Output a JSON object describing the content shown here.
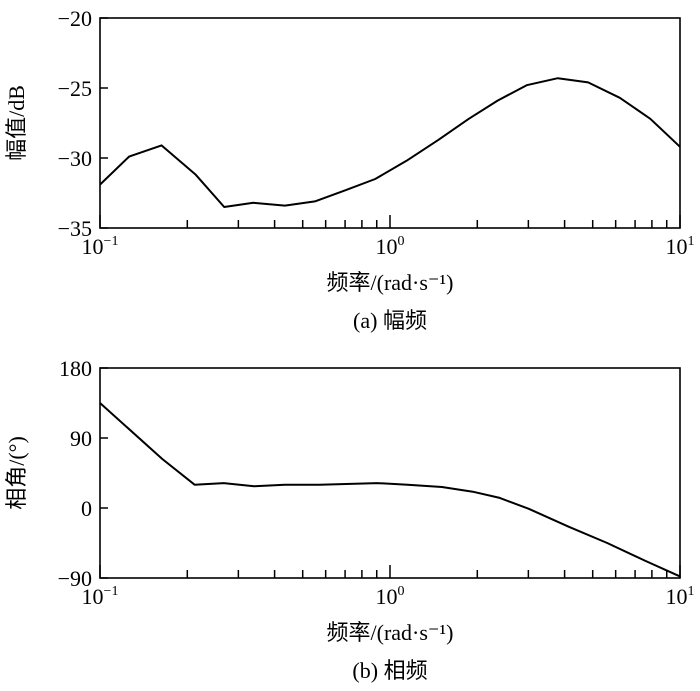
{
  "chart_data": [
    {
      "type": "line",
      "title": "",
      "caption": "(a) 幅频",
      "xlabel": "频率/(rad·s⁻¹)",
      "ylabel": "幅值/dB",
      "xscale": "log",
      "xlim": [
        0.1,
        10
      ],
      "ylim": [
        -35,
        -20
      ],
      "yticks": [
        -35,
        -30,
        -25,
        -20
      ],
      "ytick_labels": [
        "−35",
        "−30",
        "−25",
        "−20"
      ],
      "xticks": [
        0.1,
        1,
        10
      ],
      "xtick_labels": [
        {
          "base": "10",
          "exp": "−1"
        },
        {
          "base": "10",
          "exp": "0"
        },
        {
          "base": "10",
          "exp": "1"
        }
      ],
      "grid": false,
      "series": [
        {
          "name": "幅频",
          "x": [
            0.1,
            0.126,
            0.163,
            0.214,
            0.268,
            0.338,
            0.434,
            0.551,
            0.703,
            0.889,
            1.14,
            1.47,
            1.87,
            2.35,
            2.96,
            3.79,
            4.82,
            6.2,
            7.9,
            10
          ],
          "y": [
            -31.9,
            -29.9,
            -29.1,
            -31.2,
            -33.5,
            -33.2,
            -33.4,
            -33.1,
            -32.3,
            -31.5,
            -30.2,
            -28.7,
            -27.2,
            -25.9,
            -24.8,
            -24.3,
            -24.6,
            -25.7,
            -27.2,
            -29.2
          ]
        }
      ]
    },
    {
      "type": "line",
      "title": "",
      "caption": "(b) 相频",
      "xlabel": "频率/(rad·s⁻¹)",
      "ylabel": "相角/(°)",
      "xscale": "log",
      "xlim": [
        0.1,
        10
      ],
      "ylim": [
        -90,
        180
      ],
      "yticks": [
        -90,
        0,
        90,
        180
      ],
      "ytick_labels": [
        "−90",
        "0",
        "90",
        "180"
      ],
      "xticks": [
        0.1,
        1,
        10
      ],
      "xtick_labels": [
        {
          "base": "10",
          "exp": "−1"
        },
        {
          "base": "10",
          "exp": "0"
        },
        {
          "base": "10",
          "exp": "1"
        }
      ],
      "grid": false,
      "series": [
        {
          "name": "相频",
          "x": [
            0.1,
            0.164,
            0.212,
            0.267,
            0.34,
            0.434,
            0.571,
            0.902,
            1.15,
            1.51,
            1.93,
            2.39,
            3.01,
            4.13,
            5.61,
            7.6,
            10
          ],
          "y": [
            135,
            63,
            30,
            32,
            28,
            30,
            30,
            32,
            30,
            27,
            21,
            13,
            -1,
            -24,
            -45,
            -68,
            -88
          ]
        }
      ]
    }
  ]
}
